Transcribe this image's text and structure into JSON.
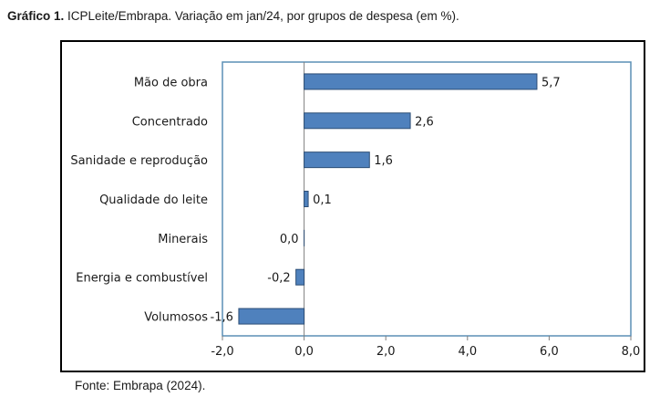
{
  "caption": {
    "label": "Gráfico 1.",
    "text": "ICPLeite/Embrapa. Variação em jan/24, por grupos de despesa (em %)."
  },
  "source": "Fonte: Embrapa (2024).",
  "chart_data": {
    "type": "bar",
    "orientation": "horizontal",
    "categories": [
      "Mão de obra",
      "Concentrado",
      "Sanidade e reprodução",
      "Qualidade do leite",
      "Minerais",
      "Energia e combustível",
      "Volumosos"
    ],
    "values": [
      5.7,
      2.6,
      1.6,
      0.1,
      0.0,
      -0.2,
      -1.6
    ],
    "value_labels": [
      "5,7",
      "2,6",
      "1,6",
      "0,1",
      "0,0",
      "-0,2",
      "-1,6"
    ],
    "xlim": [
      -2.0,
      8.0
    ],
    "xticks": [
      -2.0,
      0.0,
      2.0,
      4.0,
      6.0,
      8.0
    ],
    "xtick_labels": [
      "-2,0",
      "0,0",
      "2,0",
      "4,0",
      "6,0",
      "8,0"
    ],
    "grid": false,
    "legend": "none",
    "bar_color": "#4f81bd",
    "bar_edge_color": "#2c4d75",
    "plot_border_color": "#5b8fb5"
  }
}
